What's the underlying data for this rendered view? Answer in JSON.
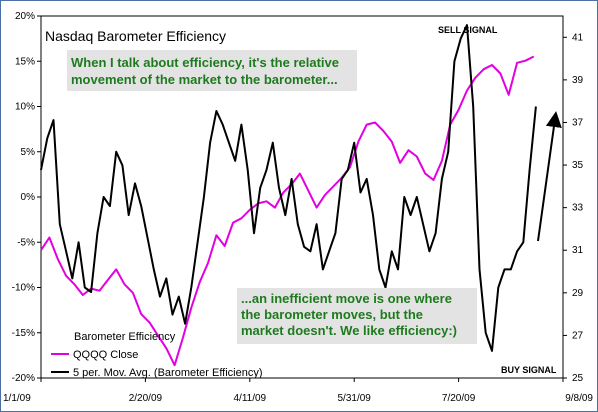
{
  "chart_data": {
    "type": "line",
    "title": "Nasdaq Barometer Efficiency",
    "x_ticks": [
      "1/1/09",
      "2/20/09",
      "4/11/09",
      "5/31/09",
      "7/20/09",
      "9/8/09"
    ],
    "y_left_ticks": [
      "20%",
      "15%",
      "10%",
      "5%",
      "0%",
      "-5%",
      "-10%",
      "-15%",
      "-20%"
    ],
    "y_right_ticks": [
      "41",
      "39",
      "37",
      "35",
      "33",
      "31",
      "29",
      "27",
      "25"
    ],
    "y_left_range": [
      -20,
      20
    ],
    "y_right_range": [
      25,
      42
    ],
    "grid": false,
    "legend_position": "bottom-left",
    "legend": {
      "title": "Barometer Efficiency",
      "items": [
        "QQQQ Close",
        "5 per. Mov. Avg. (Barometer Efficiency)"
      ]
    },
    "annotations": [
      "SELL SIGNAL",
      "BUY SIGNAL",
      "When I talk about efficiency, it's the relative movement of the market to the barometer...",
      "...an inefficient move is one where the barometer moves, but the market doesn't.  We like efficiency:)"
    ],
    "callouts": {
      "top_line1": "When I talk about efficiency, it's the relative",
      "top_line2": "movement of the market to the barometer...",
      "bottom_line1": "...an inefficient move is one where",
      "bottom_line2": "the barometer moves, but the",
      "bottom_line3": "market doesn't.  We like efficiency:)"
    },
    "colors": {
      "qqqq": "#e200e2",
      "efficiency": "#000000",
      "callout_text": "#1f7a1f",
      "callout_bg": "#e3e3e3"
    },
    "series": [
      {
        "name": "QQQQ Close",
        "axis": "right",
        "x": [
          "2009-01-01",
          "2009-01-05",
          "2009-01-09",
          "2009-01-13",
          "2009-01-17",
          "2009-01-21",
          "2009-01-25",
          "2009-01-29",
          "2009-02-02",
          "2009-02-06",
          "2009-02-10",
          "2009-02-14",
          "2009-02-18",
          "2009-02-22",
          "2009-02-26",
          "2009-03-02",
          "2009-03-06",
          "2009-03-10",
          "2009-03-14",
          "2009-03-18",
          "2009-03-22",
          "2009-03-26",
          "2009-03-30",
          "2009-04-03",
          "2009-04-07",
          "2009-04-11",
          "2009-04-15",
          "2009-04-19",
          "2009-04-23",
          "2009-04-27",
          "2009-05-01",
          "2009-05-05",
          "2009-05-09",
          "2009-05-13",
          "2009-05-17",
          "2009-05-21",
          "2009-05-25",
          "2009-05-29",
          "2009-06-02",
          "2009-06-06",
          "2009-06-10",
          "2009-06-14",
          "2009-06-18",
          "2009-06-22",
          "2009-06-26",
          "2009-06-30",
          "2009-07-04",
          "2009-07-08",
          "2009-07-12",
          "2009-07-16",
          "2009-07-20",
          "2009-07-24",
          "2009-07-28",
          "2009-08-01",
          "2009-08-05",
          "2009-08-09",
          "2009-08-13",
          "2009-08-17",
          "2009-08-21",
          "2009-08-25"
        ],
        "values": [
          31.0,
          31.6,
          30.6,
          29.8,
          29.4,
          28.9,
          29.2,
          29.1,
          29.6,
          30.1,
          29.4,
          29.0,
          28.0,
          27.6,
          27.0,
          26.4,
          25.6,
          26.9,
          28.3,
          29.5,
          30.4,
          31.7,
          31.2,
          32.3,
          32.5,
          32.9,
          33.2,
          33.3,
          33.0,
          33.7,
          34.1,
          34.6,
          33.8,
          33.0,
          33.6,
          34.0,
          34.4,
          34.9,
          36.1,
          36.9,
          37.0,
          36.6,
          36.1,
          35.1,
          35.7,
          35.4,
          34.6,
          34.3,
          35.2,
          36.9,
          37.6,
          38.5,
          39.1,
          39.5,
          39.7,
          39.3,
          38.3,
          39.8,
          39.9,
          40.1
        ]
      },
      {
        "name": "5 per. Mov. Avg. (Barometer Efficiency)",
        "axis": "left",
        "x": [
          "2009-01-01",
          "2009-01-04",
          "2009-01-07",
          "2009-01-10",
          "2009-01-13",
          "2009-01-16",
          "2009-01-19",
          "2009-01-22",
          "2009-01-25",
          "2009-01-28",
          "2009-01-31",
          "2009-02-03",
          "2009-02-06",
          "2009-02-09",
          "2009-02-12",
          "2009-02-15",
          "2009-02-18",
          "2009-02-21",
          "2009-02-24",
          "2009-02-27",
          "2009-03-02",
          "2009-03-05",
          "2009-03-08",
          "2009-03-11",
          "2009-03-14",
          "2009-03-17",
          "2009-03-20",
          "2009-03-23",
          "2009-03-26",
          "2009-03-29",
          "2009-04-01",
          "2009-04-04",
          "2009-04-07",
          "2009-04-10",
          "2009-04-13",
          "2009-04-16",
          "2009-04-19",
          "2009-04-22",
          "2009-04-25",
          "2009-04-28",
          "2009-05-01",
          "2009-05-04",
          "2009-05-07",
          "2009-05-10",
          "2009-05-13",
          "2009-05-16",
          "2009-05-19",
          "2009-05-22",
          "2009-05-25",
          "2009-05-28",
          "2009-05-31",
          "2009-06-03",
          "2009-06-06",
          "2009-06-09",
          "2009-06-12",
          "2009-06-15",
          "2009-06-18",
          "2009-06-21",
          "2009-06-24",
          "2009-06-27",
          "2009-06-30",
          "2009-07-03",
          "2009-07-06",
          "2009-07-09",
          "2009-07-12",
          "2009-07-15",
          "2009-07-18",
          "2009-07-21",
          "2009-07-24",
          "2009-07-27",
          "2009-07-30",
          "2009-08-02",
          "2009-08-05",
          "2009-08-08",
          "2009-08-11",
          "2009-08-14",
          "2009-08-17",
          "2009-08-20",
          "2009-08-23",
          "2009-08-26"
        ],
        "values": [
          3.0,
          6.5,
          8.5,
          -3.0,
          -6.0,
          -9.0,
          -5.0,
          -10.0,
          -10.5,
          -4.0,
          0.0,
          -1.0,
          5.0,
          3.5,
          -2.0,
          1.5,
          -1.0,
          -4.5,
          -8.0,
          -11.0,
          -9.0,
          -13.0,
          -11.0,
          -14.0,
          -10.0,
          -5.0,
          0.0,
          6.0,
          9.5,
          8.0,
          6.0,
          4.0,
          8.0,
          3.0,
          -4.0,
          1.0,
          3.0,
          6.0,
          1.0,
          -2.0,
          2.0,
          -3.0,
          -5.5,
          -6.0,
          -3.0,
          -8.0,
          -6.0,
          -4.0,
          2.0,
          3.0,
          6.0,
          0.5,
          2.0,
          -2.0,
          -8.0,
          -10.0,
          -6.0,
          -8.0,
          0.0,
          -2.0,
          0.0,
          -3.0,
          -6.0,
          -4.0,
          2.0,
          5.0,
          15.0,
          17.5,
          19.0,
          10.0,
          -8.0,
          -15.0,
          -17.0,
          -10.0,
          -8.0,
          -8.0,
          -6.0,
          -5.0,
          3.0,
          10.0
        ]
      }
    ]
  }
}
